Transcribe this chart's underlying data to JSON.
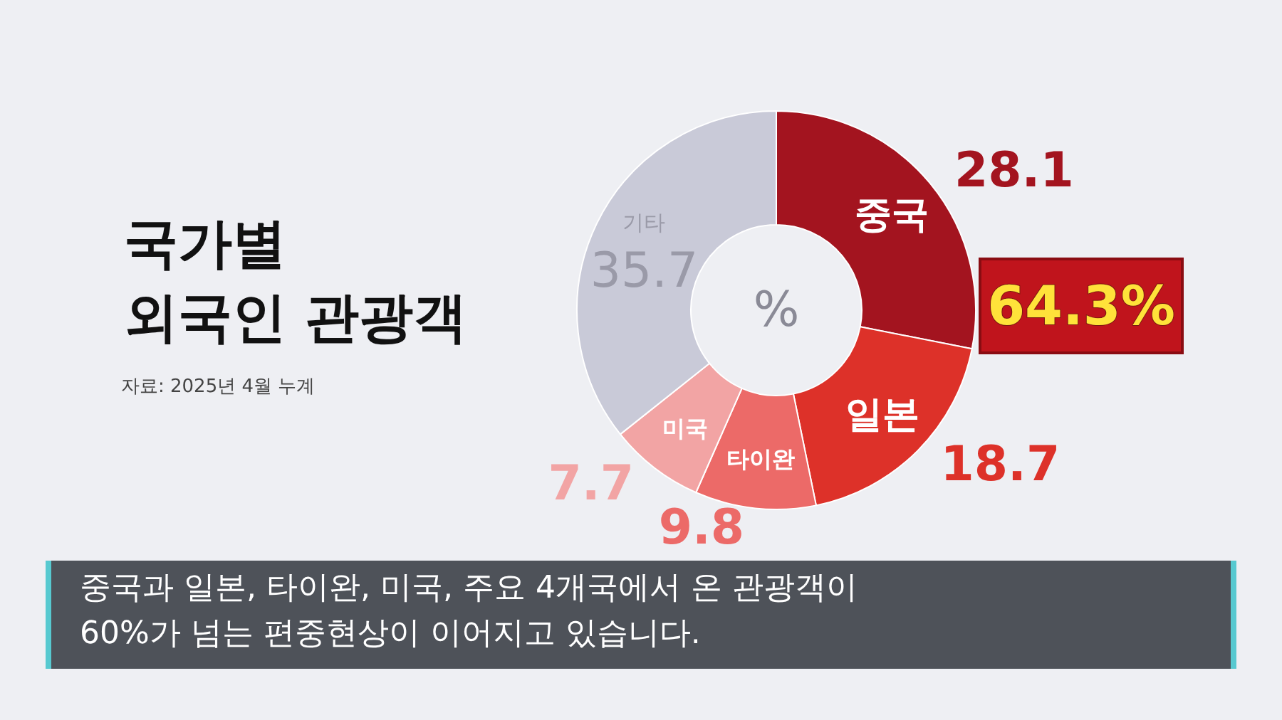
{
  "chart_data": {
    "type": "donut",
    "title": "국가별\n외국인 관광객",
    "categories": [
      "중국",
      "일본",
      "타이완",
      "미국",
      "기타"
    ],
    "values": [
      28.1,
      18.7,
      9.8,
      7.7,
      35.7
    ],
    "colors": [
      "#a3141f",
      "#dd3129",
      "#ec6a68",
      "#f2a4a4",
      "#c9cad8"
    ],
    "data_labels": true,
    "legend": false,
    "annotations": [
      "%",
      "64.3%",
      "자료: 2025년 4월 누계",
      "중국과 일본, 타이완, 미국, 주요 4개국에서 온 관광객이\n60%가 넘는 편중현상이 이어지고 있습니다."
    ]
  }
}
